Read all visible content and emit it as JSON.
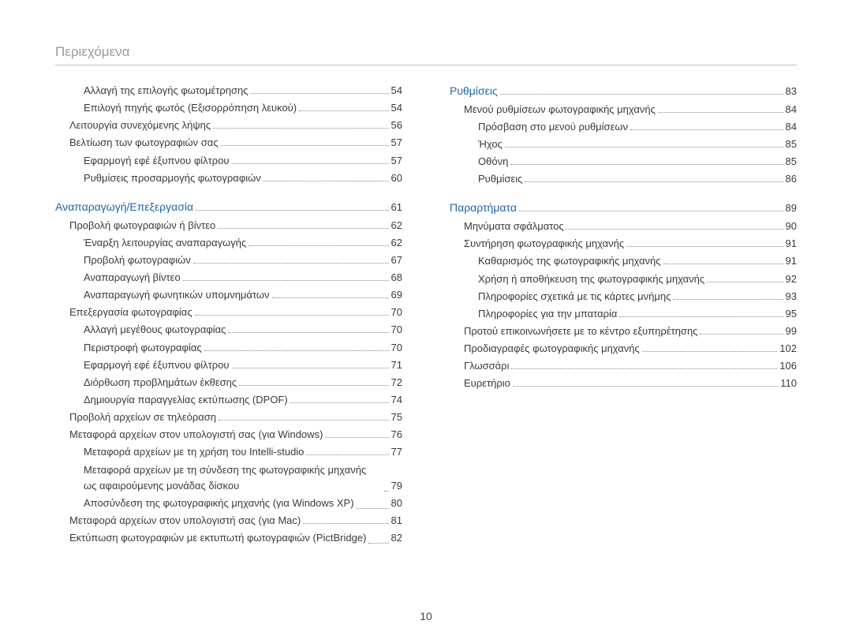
{
  "header": "Περιεχόμενα",
  "pageNumber": "10",
  "colors": {
    "headerText": "#9a9a9a",
    "bodyText": "#3a3a3a",
    "sectionTitle": "#1f66aa",
    "rule": "#bfbfbf",
    "dots": "#888888",
    "background": "#ffffff"
  },
  "fontSizes": {
    "header": 17,
    "section": 14,
    "body": 13,
    "footer": 14
  },
  "left": [
    {
      "label": "Αλλαγή της επιλογής φωτομέτρησης",
      "page": "54",
      "level": 2
    },
    {
      "label": "Επιλογή πηγής φωτός (Εξισορρόπηση λευκού)",
      "page": "54",
      "level": 2
    },
    {
      "label": "Λειτουργία συνεχόμενης λήψης",
      "page": "56",
      "level": 1
    },
    {
      "label": "Βελτίωση των φωτογραφιών σας",
      "page": "57",
      "level": 1
    },
    {
      "label": "Εφαρμογή εφέ έξυπνου φίλτρου",
      "page": "57",
      "level": 2
    },
    {
      "label": "Ρυθμίσεις προσαρμογής φωτογραφιών",
      "page": "60",
      "level": 2
    },
    {
      "gap": true
    },
    {
      "label": "Αναπαραγωγή/Επεξεργασία",
      "page": "61",
      "level": 0,
      "section": true
    },
    {
      "label": "Προβολή φωτογραφιών ή βίντεο",
      "page": "62",
      "level": 1
    },
    {
      "label": "Έναρξη λειτουργίας αναπαραγωγής",
      "page": "62",
      "level": 2
    },
    {
      "label": "Προβολή φωτογραφιών",
      "page": "67",
      "level": 2
    },
    {
      "label": "Αναπαραγωγή βίντεο",
      "page": "68",
      "level": 2
    },
    {
      "label": "Αναπαραγωγή φωνητικών υπομνημάτων",
      "page": "69",
      "level": 2
    },
    {
      "label": "Επεξεργασία φωτογραφίας",
      "page": "70",
      "level": 1
    },
    {
      "label": "Αλλαγή μεγέθους φωτογραφίας",
      "page": "70",
      "level": 2
    },
    {
      "label": "Περιστροφή φωτογραφίας",
      "page": "70",
      "level": 2
    },
    {
      "label": "Εφαρμογή εφέ έξυπνου φίλτρου",
      "page": "71",
      "level": 2
    },
    {
      "label": "Διόρθωση προβλημάτων έκθεσης",
      "page": "72",
      "level": 2
    },
    {
      "label": "Δημιουργία παραγγελίας εκτύπωσης (DPOF)",
      "page": "74",
      "level": 2
    },
    {
      "label": "Προβολή αρχείων σε τηλεόραση",
      "page": "75",
      "level": 1
    },
    {
      "label": "Μεταφορά αρχείων στον υπολογιστή σας (για Windows)",
      "page": "76",
      "level": 1
    },
    {
      "label": "Μεταφορά αρχείων με τη χρήση του Intelli-studio",
      "page": "77",
      "level": 2
    },
    {
      "label": "Μεταφορά αρχείων με τη σύνδεση της φωτογραφικής μηχανής ως αφαιρούμενης μονάδας δίσκου",
      "page": "79",
      "level": 2,
      "multiline": true
    },
    {
      "label": "Αποσύνδεση της φωτογραφικής μηχανής (για Windows XP)",
      "page": "80",
      "level": 2,
      "multiline": true
    },
    {
      "label": "Μεταφορά αρχείων στον υπολογιστή σας (για Mac)",
      "page": "81",
      "level": 1
    },
    {
      "label": "Εκτύπωση φωτογραφιών με εκτυπωτή φωτογραφιών (PictBridge)",
      "page": "82",
      "level": 1,
      "multiline": true
    }
  ],
  "right": [
    {
      "label": "Ρυθμίσεις",
      "page": "83",
      "level": 0,
      "section": true
    },
    {
      "label": "Μενού ρυθμίσεων φωτογραφικής μηχανής",
      "page": "84",
      "level": 1
    },
    {
      "label": "Πρόσβαση στο μενού ρυθμίσεων",
      "page": "84",
      "level": 2
    },
    {
      "label": "Ήχος",
      "page": "85",
      "level": 2
    },
    {
      "label": "Οθόνη",
      "page": "85",
      "level": 2
    },
    {
      "label": "Ρυθμίσεις",
      "page": "86",
      "level": 2
    },
    {
      "gap": true
    },
    {
      "label": "Παραρτήματα",
      "page": "89",
      "level": 0,
      "section": true
    },
    {
      "label": "Μηνύματα σφάλματος",
      "page": "90",
      "level": 1
    },
    {
      "label": "Συντήρηση φωτογραφικής μηχανής",
      "page": "91",
      "level": 1
    },
    {
      "label": "Καθαρισμός της φωτογραφικής μηχανής",
      "page": "91",
      "level": 2
    },
    {
      "label": "Χρήση ή αποθήκευση της φωτογραφικής μηχανής",
      "page": "92",
      "level": 2
    },
    {
      "label": "Πληροφορίες σχετικά με τις κάρτες μνήμης",
      "page": "93",
      "level": 2
    },
    {
      "label": "Πληροφορίες για την μπαταρία",
      "page": "95",
      "level": 2
    },
    {
      "label": "Προτού επικοινωνήσετε με το κέντρο εξυπηρέτησης",
      "page": "99",
      "level": 1
    },
    {
      "label": "Προδιαγραφές φωτογραφικής μηχανής",
      "page": "102",
      "level": 1
    },
    {
      "label": "Γλωσσάρι",
      "page": "106",
      "level": 1
    },
    {
      "label": "Ευρετήριο",
      "page": "110",
      "level": 1
    }
  ]
}
